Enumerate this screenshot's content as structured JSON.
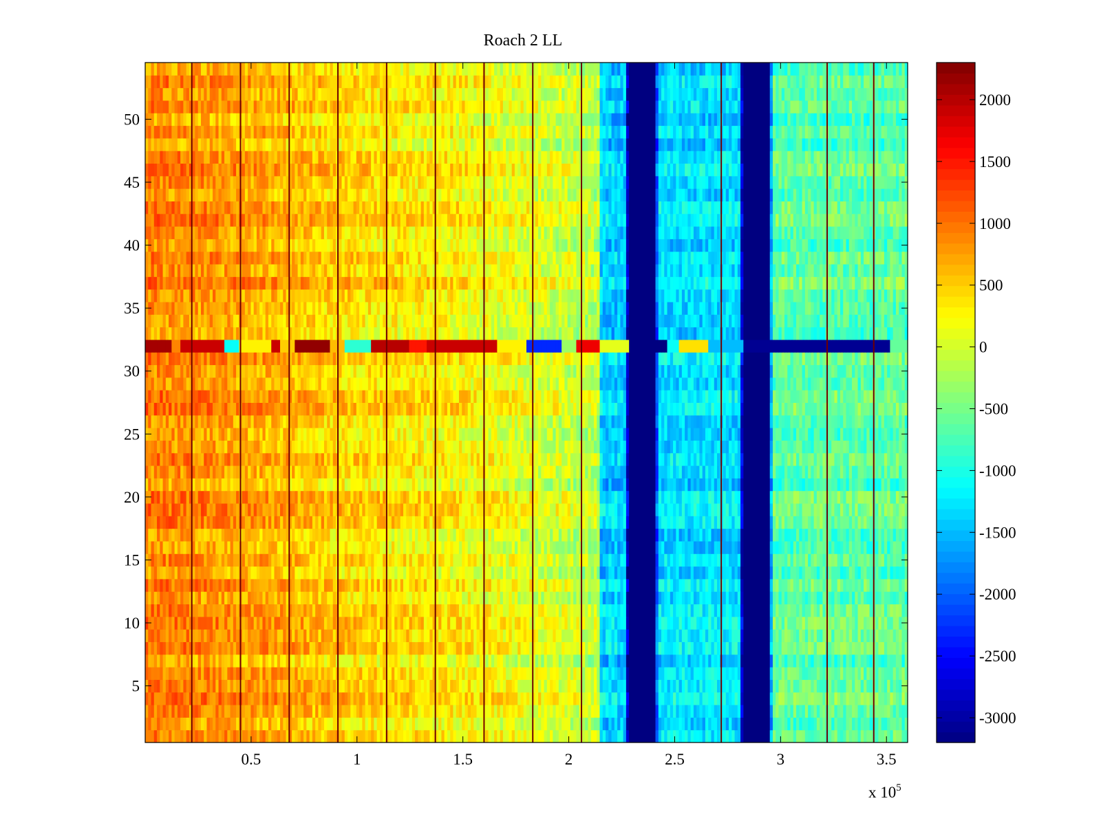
{
  "chart_data": {
    "type": "heatmap",
    "title": "Roach 2 LL",
    "xlabel": "",
    "ylabel": "",
    "xlim": [
      0,
      360000
    ],
    "ylim": [
      0.5,
      54.5
    ],
    "x_scale_label": "x 10",
    "x_scale_exponent": "5",
    "x_ticks": [
      {
        "value": 50000,
        "label": "0.5"
      },
      {
        "value": 100000,
        "label": "1"
      },
      {
        "value": 150000,
        "label": "1.5"
      },
      {
        "value": 200000,
        "label": "2"
      },
      {
        "value": 250000,
        "label": "2.5"
      },
      {
        "value": 300000,
        "label": "3"
      },
      {
        "value": 350000,
        "label": "3.5"
      }
    ],
    "y_ticks": [
      {
        "value": 5,
        "label": "5"
      },
      {
        "value": 10,
        "label": "10"
      },
      {
        "value": 15,
        "label": "15"
      },
      {
        "value": 20,
        "label": "20"
      },
      {
        "value": 25,
        "label": "25"
      },
      {
        "value": 30,
        "label": "30"
      },
      {
        "value": 35,
        "label": "35"
      },
      {
        "value": 40,
        "label": "40"
      },
      {
        "value": 45,
        "label": "45"
      },
      {
        "value": 50,
        "label": "50"
      }
    ],
    "colormap": "jet",
    "clim": [
      -3200,
      2300
    ],
    "colorbar_ticks": [
      {
        "value": 2000,
        "label": "2000"
      },
      {
        "value": 1500,
        "label": "1500"
      },
      {
        "value": 1000,
        "label": "1000"
      },
      {
        "value": 500,
        "label": "500"
      },
      {
        "value": 0,
        "label": "0"
      },
      {
        "value": -500,
        "label": "-500"
      },
      {
        "value": -1000,
        "label": "-1000"
      },
      {
        "value": -1500,
        "label": "-1500"
      },
      {
        "value": -2000,
        "label": "-2000"
      },
      {
        "value": -2500,
        "label": "-2500"
      },
      {
        "value": -3000,
        "label": "-3000"
      }
    ],
    "rows": 54,
    "value_profile": [
      {
        "x": 0,
        "v": 900
      },
      {
        "x": 30000,
        "v": 800
      },
      {
        "x": 60000,
        "v": 650
      },
      {
        "x": 100000,
        "v": 400
      },
      {
        "x": 150000,
        "v": 250
      },
      {
        "x": 200000,
        "v": -50
      },
      {
        "x": 214000,
        "v": -150
      },
      {
        "x": 215000,
        "v": -1400
      },
      {
        "x": 227000,
        "v": -1400
      },
      {
        "x": 228000,
        "v": -3200
      },
      {
        "x": 241000,
        "v": -3200
      },
      {
        "x": 242000,
        "v": -1300
      },
      {
        "x": 281000,
        "v": -1300
      },
      {
        "x": 282000,
        "v": -3200
      },
      {
        "x": 295000,
        "v": -3200
      },
      {
        "x": 296000,
        "v": -650
      },
      {
        "x": 360000,
        "v": -650
      }
    ],
    "dark_column_lines_x": [
      22000,
      45000,
      68000,
      91000,
      114000,
      137000,
      160000,
      183000,
      206000,
      272000,
      322000,
      344000
    ],
    "dark_blue_bands": [
      [
        228000,
        241000
      ],
      [
        282000,
        295000
      ]
    ],
    "highlight_row": {
      "row": 32,
      "segments": [
        {
          "from": 0,
          "to": 12000,
          "v": 2100
        },
        {
          "from": 12000,
          "to": 17000,
          "v": 900
        },
        {
          "from": 17000,
          "to": 37000,
          "v": 1900
        },
        {
          "from": 37000,
          "to": 44000,
          "v": -1100
        },
        {
          "from": 44000,
          "to": 60000,
          "v": 300
        },
        {
          "from": 60000,
          "to": 64000,
          "v": 1900
        },
        {
          "from": 64000,
          "to": 70000,
          "v": 500
        },
        {
          "from": 70000,
          "to": 87000,
          "v": 2200
        },
        {
          "from": 87000,
          "to": 94000,
          "v": 600
        },
        {
          "from": 94000,
          "to": 107000,
          "v": -900
        },
        {
          "from": 107000,
          "to": 124000,
          "v": 2000
        },
        {
          "from": 124000,
          "to": 133000,
          "v": 1500
        },
        {
          "from": 133000,
          "to": 166000,
          "v": 1900
        },
        {
          "from": 166000,
          "to": 180000,
          "v": 300
        },
        {
          "from": 180000,
          "to": 197000,
          "v": -2300
        },
        {
          "from": 197000,
          "to": 203000,
          "v": -300
        },
        {
          "from": 203000,
          "to": 214000,
          "v": 1700
        },
        {
          "from": 214000,
          "to": 228000,
          "v": 100
        },
        {
          "from": 228000,
          "to": 246000,
          "v": -3200
        },
        {
          "from": 246000,
          "to": 252000,
          "v": -1100
        },
        {
          "from": 252000,
          "to": 266000,
          "v": 400
        },
        {
          "from": 266000,
          "to": 282000,
          "v": -1500
        },
        {
          "from": 282000,
          "to": 352000,
          "v": -3100
        },
        {
          "from": 352000,
          "to": 360000,
          "v": -600
        }
      ]
    }
  }
}
